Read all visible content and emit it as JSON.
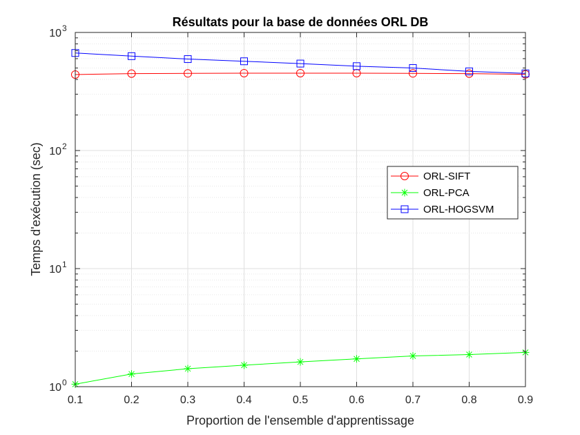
{
  "chart_data": {
    "type": "line",
    "title": "Résultats pour la base de données ORL DB",
    "xlabel": "Proportion de l'ensemble d'apprentissage",
    "ylabel": "Temps d'exécution (sec)",
    "yscale": "log",
    "xlim": [
      0.1,
      0.9
    ],
    "ylim": [
      1,
      1000
    ],
    "grid": true,
    "legend_position": "right-middle",
    "x": [
      0.1,
      0.2,
      0.3,
      0.4,
      0.5,
      0.6,
      0.7,
      0.8,
      0.9
    ],
    "x_ticks": [
      "0.1",
      "0.2",
      "0.3",
      "0.4",
      "0.5",
      "0.6",
      "0.7",
      "0.8",
      "0.9"
    ],
    "y_ticks": [
      {
        "base": "10",
        "exp": "0",
        "value": 1
      },
      {
        "base": "10",
        "exp": "1",
        "value": 10
      },
      {
        "base": "10",
        "exp": "2",
        "value": 100
      },
      {
        "base": "10",
        "exp": "3",
        "value": 1000
      }
    ],
    "series": [
      {
        "name": "ORL-SIFT",
        "color": "#ff0000",
        "marker": "circle",
        "values": [
          440,
          448,
          450,
          452,
          452,
          452,
          450,
          448,
          442
        ]
      },
      {
        "name": "ORL-PCA",
        "color": "#00ff00",
        "marker": "star",
        "values": [
          1.05,
          1.28,
          1.42,
          1.52,
          1.62,
          1.72,
          1.82,
          1.87,
          1.95
        ]
      },
      {
        "name": "ORL-HOGSVM",
        "color": "#0000ff",
        "marker": "square",
        "values": [
          670,
          630,
          595,
          570,
          545,
          518,
          500,
          468,
          450
        ]
      }
    ]
  }
}
